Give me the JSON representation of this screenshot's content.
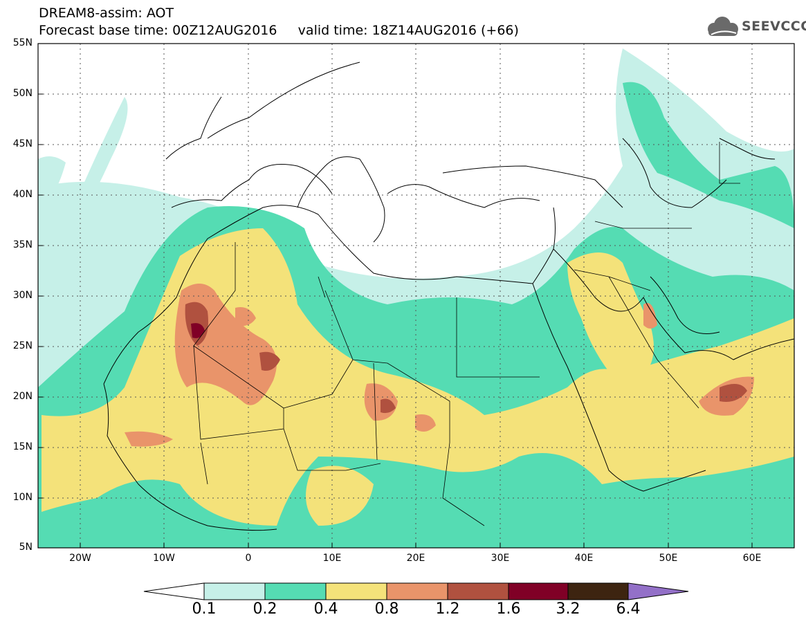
{
  "header": {
    "title_line1": "DREAM8-assim: AOT",
    "title_line2": "Forecast base time: 00Z12AUG2016     valid time: 18Z14AUG2016 (+66)",
    "logo_text": "SEEVCCC",
    "logo_icon": "cloud-icon"
  },
  "map": {
    "projection": "lat-lon",
    "lon_range": [
      -25,
      65
    ],
    "lat_range": [
      5,
      55
    ],
    "lat_labels": [
      "55N",
      "50N",
      "45N",
      "40N",
      "35N",
      "30N",
      "25N",
      "20N",
      "15N",
      "10N",
      "5N"
    ],
    "lon_labels": [
      "20W",
      "10W",
      "0",
      "10E",
      "20E",
      "30E",
      "40E",
      "50E",
      "60E"
    ],
    "grid": "dotted"
  },
  "colorbar": {
    "labels": [
      "0.1",
      "0.2",
      "0.4",
      "0.8",
      "1.2",
      "1.6",
      "3.2",
      "6.4"
    ],
    "colors": [
      "#ffffff",
      "#c6f0e8",
      "#55dcb3",
      "#f4e27a",
      "#e9946a",
      "#b0513f",
      "#800026",
      "#3d2410",
      "#9370c8"
    ]
  }
}
